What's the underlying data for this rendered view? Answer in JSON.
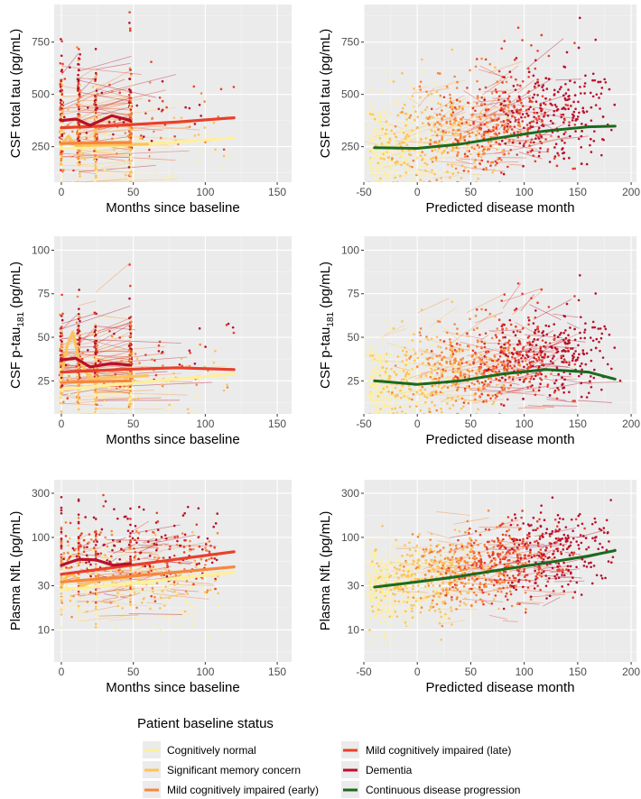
{
  "legend": {
    "title": "Patient baseline status",
    "items": [
      {
        "label": "Cognitively normal",
        "color": "#ffef9a"
      },
      {
        "label": "Significant memory concern",
        "color": "#fcc35a"
      },
      {
        "label": "Mild cognitively impaired (early)",
        "color": "#f7873d"
      },
      {
        "label": "Mild cognitively impaired (late)",
        "color": "#e8402b"
      },
      {
        "label": "Dementia",
        "color": "#b8102c"
      },
      {
        "label": "Continuous disease progression",
        "color": "#1a6a1e"
      }
    ]
  },
  "chart_data": [
    {
      "type": "scatter",
      "xlabel": "Months since baseline",
      "ylabel": "CSF total tau (pg/mL)",
      "xlim": [
        -5,
        160
      ],
      "ylim": [
        80,
        930
      ],
      "yscale": "linear",
      "xticks": [
        0,
        50,
        100,
        150
      ],
      "xticklabels": [
        "0",
        "50",
        "100",
        "150"
      ],
      "yticks": [
        250,
        500,
        750
      ],
      "yticklabels": [
        "250",
        "500",
        "750"
      ],
      "x_kind": "visits",
      "visit_months": [
        0,
        12,
        24,
        48
      ],
      "y_center": 290,
      "y_spread": 200,
      "series": [
        {
          "name": "Cognitively normal",
          "x": [
            0,
            40,
            80,
            120
          ],
          "y": [
            240,
            255,
            272,
            292
          ]
        },
        {
          "name": "Significant memory concern",
          "x": [
            0,
            5,
            10,
            30,
            60
          ],
          "y": [
            260,
            300,
            255,
            258,
            262
          ]
        },
        {
          "name": "Mild cognitively impaired (early)",
          "x": [
            0,
            20,
            48
          ],
          "y": [
            265,
            268,
            270
          ]
        },
        {
          "name": "Mild cognitively impaired (late)",
          "x": [
            0,
            40,
            80,
            120
          ],
          "y": [
            340,
            352,
            368,
            388
          ]
        },
        {
          "name": "Dementia",
          "x": [
            0,
            10,
            20,
            35,
            48
          ],
          "y": [
            375,
            382,
            352,
            398,
            375
          ]
        }
      ]
    },
    {
      "type": "scatter",
      "xlabel": "Predicted disease month",
      "ylabel": "CSF total tau (pg/mL)",
      "xlim": [
        -50,
        205
      ],
      "ylim": [
        80,
        930
      ],
      "yscale": "linear",
      "xticks": [
        -50,
        0,
        50,
        100,
        150,
        200
      ],
      "xticklabels": [
        "-50",
        "0",
        "50",
        "100",
        "150",
        "200"
      ],
      "yticks": [
        250,
        500,
        750
      ],
      "yticklabels": [
        "250",
        "500",
        "750"
      ],
      "x_kind": "progression",
      "y_center": 290,
      "y_spread": 200,
      "series": [
        {
          "name": "Continuous disease progression",
          "x": [
            -40,
            0,
            40,
            80,
            120,
            160,
            185
          ],
          "y": [
            245,
            242,
            262,
            295,
            325,
            345,
            348
          ]
        }
      ]
    },
    {
      "type": "scatter",
      "xlabel": "Months since baseline",
      "ylabel": "CSF p-tau181 (pg/mL)",
      "ylabel_parts": [
        "CSF p-tau",
        "181",
        " (pg/mL)"
      ],
      "xlim": [
        -5,
        160
      ],
      "ylim": [
        6,
        108
      ],
      "yscale": "linear",
      "xticks": [
        0,
        50,
        100,
        150
      ],
      "xticklabels": [
        "0",
        "50",
        "100",
        "150"
      ],
      "yticks": [
        25,
        50,
        75,
        100
      ],
      "yticklabels": [
        "25",
        "50",
        "75",
        "100"
      ],
      "x_kind": "visits",
      "visit_months": [
        0,
        12,
        24,
        48
      ],
      "y_center": 28,
      "y_spread": 20,
      "series": [
        {
          "name": "Cognitively normal",
          "x": [
            0,
            40,
            80,
            120
          ],
          "y": [
            20,
            23,
            26,
            29
          ]
        },
        {
          "name": "Significant memory concern",
          "x": [
            0,
            4,
            8,
            12,
            20,
            40,
            60
          ],
          "y": [
            28,
            45,
            53,
            38,
            26,
            27,
            28
          ]
        },
        {
          "name": "Mild cognitively impaired (early)",
          "x": [
            0,
            20,
            48
          ],
          "y": [
            24,
            24.5,
            25
          ]
        },
        {
          "name": "Mild cognitively impaired (late)",
          "x": [
            0,
            40,
            80,
            120
          ],
          "y": [
            30,
            31.5,
            32.5,
            31.5
          ]
        },
        {
          "name": "Dementia",
          "x": [
            0,
            10,
            20,
            35,
            48
          ],
          "y": [
            37,
            38,
            33,
            35,
            34
          ]
        }
      ]
    },
    {
      "type": "scatter",
      "xlabel": "Predicted disease month",
      "ylabel": "CSF p-tau181 (pg/mL)",
      "ylabel_parts": [
        "CSF p-tau",
        "181",
        " (pg/mL)"
      ],
      "xlim": [
        -50,
        205
      ],
      "ylim": [
        6,
        108
      ],
      "yscale": "linear",
      "xticks": [
        -50,
        0,
        50,
        100,
        150,
        200
      ],
      "xticklabels": [
        "-50",
        "0",
        "50",
        "100",
        "150",
        "200"
      ],
      "yticks": [
        25,
        50,
        75,
        100
      ],
      "yticklabels": [
        "25",
        "50",
        "75",
        "100"
      ],
      "x_kind": "progression",
      "y_center": 28,
      "y_spread": 20,
      "series": [
        {
          "name": "Continuous disease progression",
          "x": [
            -40,
            0,
            40,
            80,
            120,
            160,
            185
          ],
          "y": [
            25,
            23,
            25,
            29,
            31.5,
            30,
            26
          ]
        }
      ]
    },
    {
      "type": "scatter",
      "xlabel": "Months since baseline",
      "ylabel": "Plasma NfL (pg/mL)",
      "xlim": [
        -5,
        160
      ],
      "ylim": [
        4.5,
        420
      ],
      "yscale": "log",
      "xticks": [
        0,
        50,
        100,
        150
      ],
      "xticklabels": [
        "0",
        "50",
        "100",
        "150"
      ],
      "yticks": [
        10,
        30,
        100,
        300
      ],
      "yticklabels": [
        "10",
        "30",
        "100",
        "300"
      ],
      "x_kind": "uniform",
      "x_range": [
        0,
        110
      ],
      "y_center": 35,
      "y_spread": 0.9,
      "series": [
        {
          "name": "Cognitively normal",
          "x": [
            0,
            40,
            80,
            120
          ],
          "y": [
            27,
            31,
            36,
            42
          ]
        },
        {
          "name": "Significant memory concern",
          "x": [
            0,
            4,
            8,
            14,
            24,
            40,
            60
          ],
          "y": [
            30,
            38,
            40,
            30,
            34,
            36,
            40
          ]
        },
        {
          "name": "Mild cognitively impaired (early)",
          "x": [
            0,
            40,
            80,
            120
          ],
          "y": [
            33,
            37,
            42,
            48
          ]
        },
        {
          "name": "Mild cognitively impaired (late)",
          "x": [
            0,
            40,
            80,
            120
          ],
          "y": [
            40,
            48,
            58,
            70
          ]
        },
        {
          "name": "Dementia",
          "x": [
            0,
            12,
            24,
            36,
            48
          ],
          "y": [
            50,
            58,
            57,
            50,
            52
          ]
        }
      ]
    },
    {
      "type": "scatter",
      "xlabel": "Predicted disease month",
      "ylabel": "Plasma NfL (pg/mL)",
      "xlim": [
        -50,
        205
      ],
      "ylim": [
        4.5,
        420
      ],
      "yscale": "log",
      "xticks": [
        -50,
        0,
        50,
        100,
        150,
        200
      ],
      "xticklabels": [
        "-50",
        "0",
        "50",
        "100",
        "150",
        "200"
      ],
      "yticks": [
        10,
        30,
        100,
        300
      ],
      "yticklabels": [
        "10",
        "30",
        "100",
        "300"
      ],
      "x_kind": "progression",
      "y_center": 35,
      "y_spread": 0.9,
      "series": [
        {
          "name": "Continuous disease progression",
          "x": [
            -40,
            0,
            40,
            80,
            120,
            160,
            185
          ],
          "y": [
            29,
            33,
            38,
            45,
            53,
            63,
            72
          ]
        }
      ]
    }
  ]
}
